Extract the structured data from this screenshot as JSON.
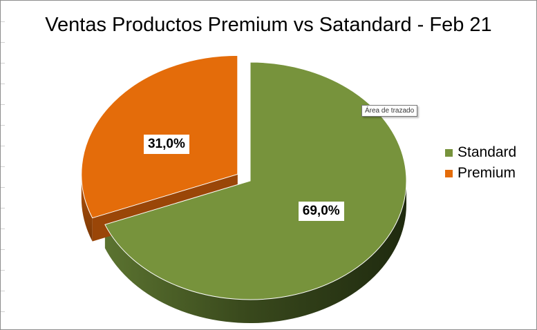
{
  "chart_data": {
    "type": "pie",
    "title": "Ventas Productos Premium vs Satandard - Feb 21",
    "categories": [
      "Standard",
      "Premium"
    ],
    "values": [
      69.0,
      31.0
    ],
    "data_labels": [
      "69,0%",
      "31,0%"
    ],
    "colors": [
      "#77933c",
      "#e46c0a"
    ],
    "legend_position": "right",
    "exploded": [
      "Premium"
    ],
    "three_d": true
  },
  "tooltip": {
    "text": "Área de trazado"
  }
}
